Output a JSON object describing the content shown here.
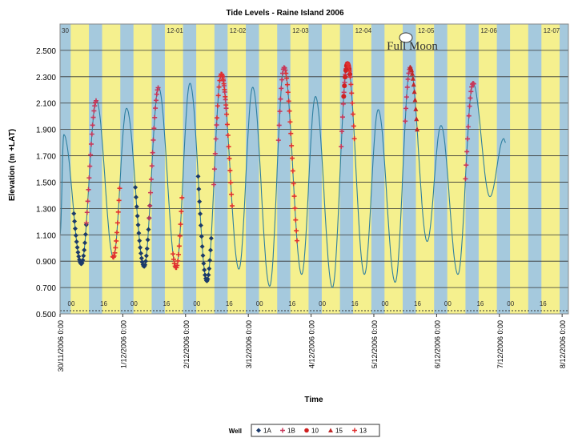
{
  "chart_data": {
    "type": "line",
    "title": "Tide Levels - Raine Island 2006",
    "xlabel": "Time",
    "ylabel": "Elevation (m +LAT)",
    "ylim": [
      0.5,
      2.7
    ],
    "yticks": [
      "0.500",
      "0.700",
      "0.900",
      "1.100",
      "1.300",
      "1.500",
      "1.700",
      "1.900",
      "2.100",
      "2.300",
      "2.500"
    ],
    "ytick_values": [
      0.5,
      0.7,
      0.9,
      1.1,
      1.3,
      1.5,
      1.7,
      1.9,
      2.1,
      2.3,
      2.5
    ],
    "xlim_days": [
      0,
      8.1
    ],
    "x_ticks": [
      "30/11/2006 0:00",
      "1/12/2006 0:00",
      "2/12/2006 0:00",
      "3/12/2006 0:00",
      "4/12/2006 0:00",
      "5/12/2006 0:00",
      "6/12/2006 0:00",
      "7/12/2006 0:00",
      "8/12/2006 0:00"
    ],
    "day_labels": [
      "30",
      "12-01",
      "12-02",
      "12-03",
      "12-04",
      "12-05",
      "12-06",
      "12-07"
    ],
    "hour_labels": [
      "00",
      "16"
    ],
    "grid": true,
    "legend_position": "bottom",
    "legend_title": "Well",
    "annotation": "Full Moon",
    "colors": {
      "blue_band": "#a5c9dd",
      "yellow_band": "#f5f08e",
      "tide_line": "#2e7fa0",
      "plot_border": "#888888"
    },
    "tide": {
      "name": "Tide",
      "color": "#2e7fa0",
      "extrema": [
        [
          0.0,
          1.1
        ],
        [
          0.06,
          1.86
        ],
        [
          0.34,
          0.88
        ],
        [
          0.58,
          2.12
        ],
        [
          0.85,
          0.93
        ],
        [
          1.06,
          2.06
        ],
        [
          1.34,
          0.86
        ],
        [
          1.57,
          2.22
        ],
        [
          1.85,
          0.85
        ],
        [
          2.07,
          2.25
        ],
        [
          2.34,
          0.75
        ],
        [
          2.57,
          2.32
        ],
        [
          2.85,
          0.84
        ],
        [
          3.07,
          2.22
        ],
        [
          3.34,
          0.71
        ],
        [
          3.57,
          2.37
        ],
        [
          3.85,
          0.8
        ],
        [
          4.07,
          2.15
        ],
        [
          4.34,
          0.7
        ],
        [
          4.58,
          2.4
        ],
        [
          4.85,
          0.8
        ],
        [
          5.07,
          2.05
        ],
        [
          5.34,
          0.74
        ],
        [
          5.58,
          2.37
        ],
        [
          5.85,
          1.05
        ],
        [
          6.07,
          1.93
        ],
        [
          6.34,
          0.8
        ],
        [
          6.58,
          2.25
        ],
        [
          6.85,
          1.39
        ],
        [
          7.07,
          1.83
        ],
        [
          7.1,
          1.8
        ]
      ]
    },
    "series": [
      {
        "name": "1A",
        "marker": "diamond",
        "color": "#1b3a6b",
        "ranges": [
          [
            0.22,
            0.42
          ],
          [
            1.2,
            1.44
          ],
          [
            2.2,
            2.41
          ]
        ]
      },
      {
        "name": "1B",
        "marker": "plus",
        "color": "#c8385a",
        "ranges": [
          [
            0.42,
            0.58
          ],
          [
            1.42,
            1.57
          ],
          [
            2.45,
            2.5
          ],
          [
            2.65,
            2.57
          ],
          [
            3.48,
            3.6
          ],
          [
            4.48,
            4.58
          ],
          [
            5.5,
            5.58
          ],
          [
            6.46,
            6.6
          ]
        ]
      },
      {
        "name": "10",
        "marker": "circle",
        "color": "#d02020",
        "ranges": [
          [
            4.52,
            4.62
          ]
        ]
      },
      {
        "name": "15",
        "marker": "triangle",
        "color": "#c02828",
        "ranges": [
          [
            5.58,
            5.7
          ]
        ]
      },
      {
        "name": "13",
        "marker": "plus",
        "color": "#e03030",
        "ranges": [
          [
            0.84,
            0.96
          ],
          [
            1.8,
            1.95
          ],
          [
            2.5,
            2.75
          ],
          [
            3.6,
            3.78
          ],
          [
            4.58,
            4.7
          ]
        ]
      }
    ]
  }
}
